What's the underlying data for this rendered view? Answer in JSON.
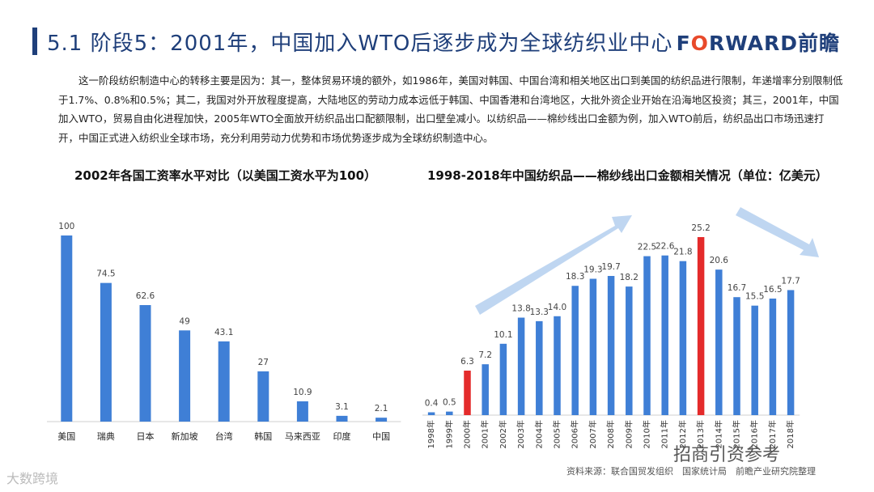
{
  "header": {
    "title": "5.1 阶段5：2001年，中国加入WTO后逐步成为全球纺织业中心",
    "logo_prefix": "F",
    "logo_o": "O",
    "logo_rest": "RWARD前瞻"
  },
  "body_text": "这一阶段纺织制造中心的转移主要是因为：其一，整体贸易环境的额外，如1986年，美国对韩国、中国台湾和相关地区出口到美国的纺织品进行限制，年递增率分别限制低于1.7%、0.8%和0.5%；其二，我国对外开放程度提高，大陆地区的劳动力成本远低于韩国、中国香港和台湾地区，大批外资企业开始在沿海地区投资；其三，2001年，中国加入WTO，贸易自由化进程加快，2005年WTO全面放开纺织品出口配额限制，出口壁垒减小。以纺织品——棉纱线出口金额为例，加入WTO前后，纺织品出口市场迅速打开，中国正式进入纺织业全球市场，充分利用劳动力优势和市场优势逐步成为全球纺织制造中心。",
  "chart_data": [
    {
      "type": "bar",
      "title": "2002年各国工资率水平对比（以美国工资水平为100）",
      "categories": [
        "美国",
        "瑞典",
        "日本",
        "新加坡",
        "台湾",
        "韩国",
        "马来西亚",
        "印度",
        "中国"
      ],
      "values": [
        100,
        74.5,
        62.6,
        49,
        43.1,
        27,
        10.9,
        3.1,
        2.1
      ],
      "value_labels": [
        "100",
        "74.5",
        "62.6",
        "49",
        "43.1",
        "27",
        "10.9",
        "3.1",
        "2.1"
      ],
      "ylim": [
        0,
        100
      ],
      "color": "#3f7fd6"
    },
    {
      "type": "bar",
      "title": "1998-2018年中国纺织品——棉纱线出口金额相关情况（单位：亿美元）",
      "categories": [
        "1998年",
        "1999年",
        "2000年",
        "2001年",
        "2002年",
        "2003年",
        "2004年",
        "2005年",
        "2006年",
        "2007年",
        "2008年",
        "2009年",
        "2010年",
        "2011年",
        "2012年",
        "2013年",
        "2014年",
        "2015年",
        "2016年",
        "2017年",
        "2018年"
      ],
      "values": [
        0.4,
        0.5,
        6.3,
        7.2,
        10.1,
        13.8,
        13.3,
        14.0,
        18.3,
        19.3,
        19.7,
        18.2,
        22.5,
        22.6,
        21.8,
        25.2,
        20.6,
        16.7,
        15.5,
        16.5,
        17.7
      ],
      "value_labels": [
        "0.4",
        "0.5",
        "6.3",
        "7.2",
        "10.1",
        "13.8",
        "13.3",
        "14.0",
        "18.3",
        "19.3",
        "19.7",
        "18.2",
        "22.5",
        "22.6",
        "21.8",
        "25.2",
        "20.6",
        "16.7",
        "15.5",
        "16.5",
        "17.7"
      ],
      "highlight": [
        "2000年",
        "2013年"
      ],
      "ylim": [
        0,
        25.2
      ],
      "color": "#3f7fd6",
      "highlight_color": "#e42b2b",
      "trend_arrow_color": "#b8d2f0"
    }
  ],
  "footer": {
    "source": "资料来源：联合国贸发组织　国家统计局　前瞻产业研究院整理",
    "watermark_left": "大数跨境",
    "watermark_right": "招商引资参考"
  }
}
